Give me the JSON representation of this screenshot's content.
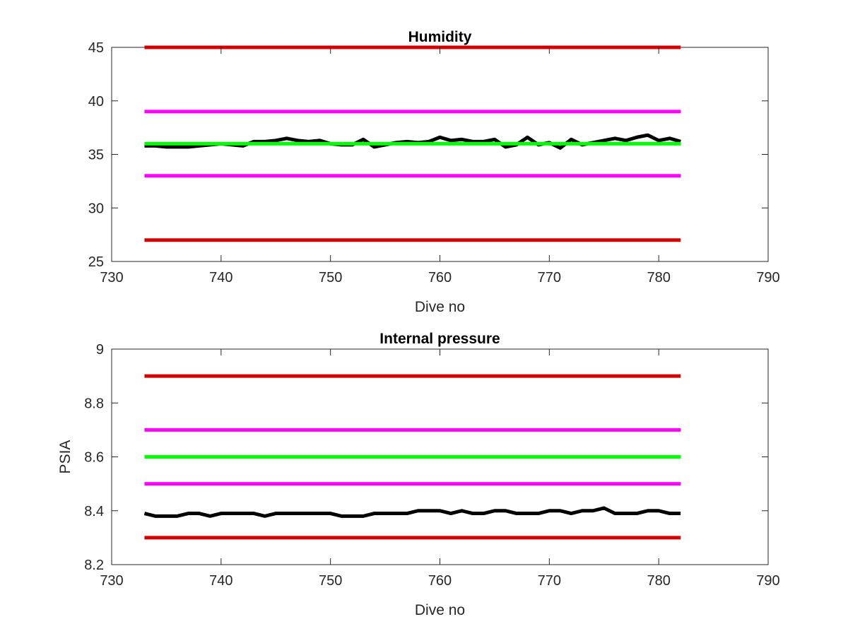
{
  "chart_data": [
    {
      "type": "line",
      "title": "Humidity",
      "xlabel": "Dive no",
      "ylabel": "",
      "xlim": [
        730,
        790
      ],
      "ylim": [
        25,
        45
      ],
      "xticks": [
        730,
        740,
        750,
        760,
        770,
        780,
        790
      ],
      "xtick_labels": [
        "730",
        "740",
        "750",
        "760",
        "770",
        "780",
        "790"
      ],
      "yticks": [
        25,
        30,
        35,
        40,
        45
      ],
      "ytick_labels": [
        "25",
        "30",
        "35",
        "40",
        "45"
      ],
      "grid": false,
      "series": [
        {
          "color": "#d40000",
          "x": [
            733,
            782
          ],
          "y": [
            45,
            45
          ]
        },
        {
          "color": "#ff00ff",
          "x": [
            733,
            782
          ],
          "y": [
            39,
            39
          ]
        },
        {
          "color": "#000000",
          "x": [
            733,
            734,
            735,
            736,
            737,
            738,
            739,
            740,
            741,
            742,
            743,
            744,
            745,
            746,
            747,
            748,
            749,
            750,
            751,
            752,
            753,
            754,
            755,
            756,
            757,
            758,
            759,
            760,
            761,
            762,
            763,
            764,
            765,
            766,
            767,
            768,
            769,
            770,
            771,
            772,
            773,
            774,
            775,
            776,
            777,
            778,
            779,
            780,
            781,
            782
          ],
          "y": [
            35.8,
            35.8,
            35.7,
            35.7,
            35.7,
            35.8,
            35.9,
            36.0,
            35.9,
            35.8,
            36.2,
            36.2,
            36.3,
            36.5,
            36.3,
            36.2,
            36.3,
            36.0,
            35.9,
            35.9,
            36.4,
            35.7,
            35.9,
            36.1,
            36.2,
            36.1,
            36.2,
            36.6,
            36.3,
            36.4,
            36.2,
            36.2,
            36.4,
            35.7,
            35.9,
            36.6,
            35.9,
            36.1,
            35.6,
            36.4,
            35.9,
            36.1,
            36.3,
            36.5,
            36.3,
            36.6,
            36.8,
            36.3,
            36.5,
            36.2
          ]
        },
        {
          "color": "#00ff00",
          "x": [
            733,
            782
          ],
          "y": [
            36,
            36
          ]
        },
        {
          "color": "#ff00ff",
          "x": [
            733,
            782
          ],
          "y": [
            33,
            33
          ]
        },
        {
          "color": "#d40000",
          "x": [
            733,
            782
          ],
          "y": [
            27,
            27
          ]
        }
      ]
    },
    {
      "type": "line",
      "title": "Internal pressure",
      "xlabel": "Dive no",
      "ylabel": "PSIA",
      "xlim": [
        730,
        790
      ],
      "ylim": [
        8.2,
        9.0
      ],
      "xticks": [
        730,
        740,
        750,
        760,
        770,
        780,
        790
      ],
      "xtick_labels": [
        "730",
        "740",
        "750",
        "760",
        "770",
        "780",
        "790"
      ],
      "yticks": [
        8.2,
        8.4,
        8.6,
        8.8,
        9.0
      ],
      "ytick_labels": [
        "8.2",
        "8.4",
        "8.6",
        "8.8",
        "9"
      ],
      "grid": false,
      "series": [
        {
          "color": "#d40000",
          "x": [
            733,
            782
          ],
          "y": [
            8.9,
            8.9
          ]
        },
        {
          "color": "#ff00ff",
          "x": [
            733,
            782
          ],
          "y": [
            8.7,
            8.7
          ]
        },
        {
          "color": "#00ff00",
          "x": [
            733,
            782
          ],
          "y": [
            8.6,
            8.6
          ]
        },
        {
          "color": "#ff00ff",
          "x": [
            733,
            782
          ],
          "y": [
            8.5,
            8.5
          ]
        },
        {
          "color": "#000000",
          "x": [
            733,
            734,
            735,
            736,
            737,
            738,
            739,
            740,
            741,
            742,
            743,
            744,
            745,
            746,
            747,
            748,
            749,
            750,
            751,
            752,
            753,
            754,
            755,
            756,
            757,
            758,
            759,
            760,
            761,
            762,
            763,
            764,
            765,
            766,
            767,
            768,
            769,
            770,
            771,
            772,
            773,
            774,
            775,
            776,
            777,
            778,
            779,
            780,
            781,
            782
          ],
          "y": [
            8.39,
            8.38,
            8.38,
            8.38,
            8.39,
            8.39,
            8.38,
            8.39,
            8.39,
            8.39,
            8.39,
            8.38,
            8.39,
            8.39,
            8.39,
            8.39,
            8.39,
            8.39,
            8.38,
            8.38,
            8.38,
            8.39,
            8.39,
            8.39,
            8.39,
            8.4,
            8.4,
            8.4,
            8.39,
            8.4,
            8.39,
            8.39,
            8.4,
            8.4,
            8.39,
            8.39,
            8.39,
            8.4,
            8.4,
            8.39,
            8.4,
            8.4,
            8.41,
            8.39,
            8.39,
            8.39,
            8.4,
            8.4,
            8.39,
            8.39
          ]
        },
        {
          "color": "#d40000",
          "x": [
            733,
            782
          ],
          "y": [
            8.3,
            8.3
          ]
        }
      ]
    }
  ]
}
